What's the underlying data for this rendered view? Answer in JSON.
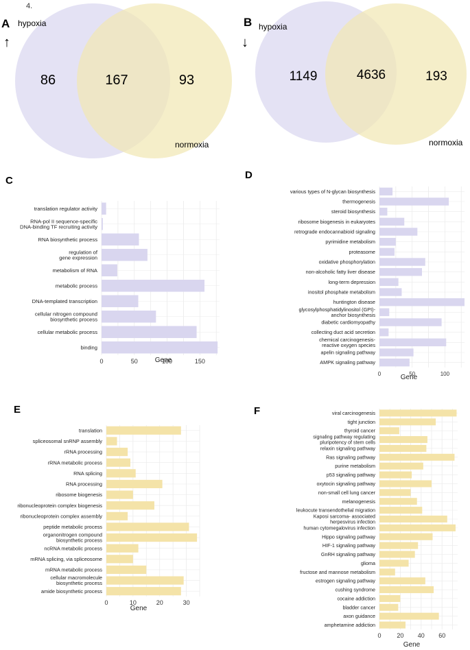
{
  "figure_label": "4.",
  "colors": {
    "venn_left": "#d9d6ef",
    "venn_right": "#f1e7b4",
    "bar_purple": "#d9d6ef",
    "bar_yellow": "#f4e3a8",
    "grid": "#ebebeb",
    "text": "#222222"
  },
  "chart_data": [
    {
      "panel": "A",
      "type": "venn",
      "arrow": "↑",
      "sets": [
        "hypoxia",
        "normoxia"
      ],
      "values": {
        "left_only": 86,
        "both": 167,
        "right_only": 93
      }
    },
    {
      "panel": "B",
      "type": "venn",
      "arrow": "↓",
      "sets": [
        "hypoxia",
        "normoxia"
      ],
      "values": {
        "left_only": 1149,
        "both": 4636,
        "right_only": 193
      }
    },
    {
      "panel": "C",
      "type": "bar",
      "orientation": "horizontal",
      "xlabel": "Gene",
      "xlim": [
        0,
        180
      ],
      "xticks": [
        0,
        50,
        100,
        150
      ],
      "color": "#d9d6ef",
      "categories": [
        [
          "translation regulator activity"
        ],
        [
          "RNA-pol II sequence-specific",
          "DNA-binding TF recruiting activity"
        ],
        [
          "RNA biosynthetic process"
        ],
        [
          "regulation of",
          "gene expression"
        ],
        [
          "metabolism of RNA"
        ],
        [
          "metabolic process"
        ],
        [
          "DNA-templated transcription"
        ],
        [
          "cellular nitrogen compound",
          "biosynthetic process"
        ],
        [
          "cellular metabolic process"
        ],
        [
          "binding"
        ]
      ],
      "values": [
        7,
        2,
        57,
        70,
        24,
        157,
        56,
        83,
        145,
        177
      ]
    },
    {
      "panel": "D",
      "type": "bar",
      "orientation": "horizontal",
      "xlabel": "Gene",
      "xlim": [
        0,
        130
      ],
      "xticks": [
        0,
        50,
        100
      ],
      "color": "#d9d6ef",
      "categories": [
        [
          "various types of N-glycan biosynthesis"
        ],
        [
          "thermogenesis"
        ],
        [
          "steroid biosynthesis"
        ],
        [
          "ribosome biogenesis in eukaryotes"
        ],
        [
          "retrograde endocannabioid signaling"
        ],
        [
          "pyrimidine metabolism"
        ],
        [
          "proteasome"
        ],
        [
          "oxidative phosphorylation"
        ],
        [
          "non-alcoholic fatty liver disease"
        ],
        [
          "long-term depression"
        ],
        [
          "inositol phosphate metabolism"
        ],
        [
          "huntington disease"
        ],
        [
          "glycosylphosphatidylinositol (GPI)-",
          "anchor biosynthesis"
        ],
        [
          "diabetic cardiomyopathy"
        ],
        [
          "collecting duct acid secretion"
        ],
        [
          "chemical carcinogenesis-",
          "reactive oxygen species"
        ],
        [
          "apelin signaling pathway"
        ],
        [
          "AMPK signaling pathway"
        ]
      ],
      "values": [
        20,
        106,
        12,
        38,
        58,
        25,
        23,
        70,
        65,
        29,
        34,
        130,
        15,
        95,
        14,
        102,
        52,
        46
      ]
    },
    {
      "panel": "E",
      "type": "bar",
      "orientation": "horizontal",
      "xlabel": "Gene",
      "xlim": [
        0,
        35
      ],
      "xticks": [
        0,
        10,
        20,
        30
      ],
      "color": "#f4e3a8",
      "categories": [
        [
          "translation"
        ],
        [
          "spliceosomal snRNP assembly"
        ],
        [
          "rRNA processing"
        ],
        [
          "rRNA metabolic process"
        ],
        [
          "RNA splicing"
        ],
        [
          "RNA processing"
        ],
        [
          "ribosome biogenesis"
        ],
        [
          "ribonucleoprotein complex biogenesis"
        ],
        [
          "ribonucleoprotein complex assembly"
        ],
        [
          "peptide metabolic process"
        ],
        [
          "organonitrogen compound",
          "biosynthetic process"
        ],
        [
          "ncRNA metabolic process"
        ],
        [
          "mRNA splicing, via spliceosome"
        ],
        [
          "mRNA metabolic process"
        ],
        [
          "cellular macromolecule",
          "biosynthetic process"
        ],
        [
          "amide biosynthetic process"
        ]
      ],
      "values": [
        28,
        4,
        8,
        9,
        11,
        21,
        10,
        18,
        8,
        31,
        34,
        12,
        10,
        15,
        29,
        28
      ]
    },
    {
      "panel": "F",
      "type": "bar",
      "orientation": "horizontal",
      "xlabel": "Gene",
      "xlim": [
        0,
        75
      ],
      "xticks": [
        0,
        20,
        40,
        60
      ],
      "color": "#f4e3a8",
      "categories": [
        [
          "viral carcinogenesis"
        ],
        [
          "tight junction"
        ],
        [
          "thyroid cancer"
        ],
        [
          "signaling pathway regulating",
          "pluripotency of stem cells"
        ],
        [
          "relaxin signaling pathway"
        ],
        [
          "Ras signaling pathway"
        ],
        [
          "purine metabolism"
        ],
        [
          "p53 signaling pathway"
        ],
        [
          "oxytocin signaling pathway"
        ],
        [
          "non-small cell lung cancer"
        ],
        [
          "melanogenesis"
        ],
        [
          "leukocute transendothelial migration"
        ],
        [
          "Kaposi sarcoma- associated",
          "herpesvirus infection"
        ],
        [
          "human cytomegalovirus infection"
        ],
        [
          "Hippo signaling pathway"
        ],
        [
          "HIF-1 signaling pathway"
        ],
        [
          "GnRH signaling pathway"
        ],
        [
          "glioma"
        ],
        [
          "fructose and mannose metabolism"
        ],
        [
          "estrogen signaling pathway"
        ],
        [
          "cushing syndrome"
        ],
        [
          "cocaine addiction"
        ],
        [
          "bladder cancer"
        ],
        [
          "axon guidance"
        ],
        [
          "amphetamine addiction"
        ]
      ],
      "values": [
        74,
        54,
        19,
        46,
        45,
        72,
        42,
        31,
        50,
        30,
        36,
        41,
        65,
        73,
        51,
        37,
        34,
        28,
        15,
        44,
        52,
        20,
        18,
        57,
        25
      ]
    }
  ]
}
